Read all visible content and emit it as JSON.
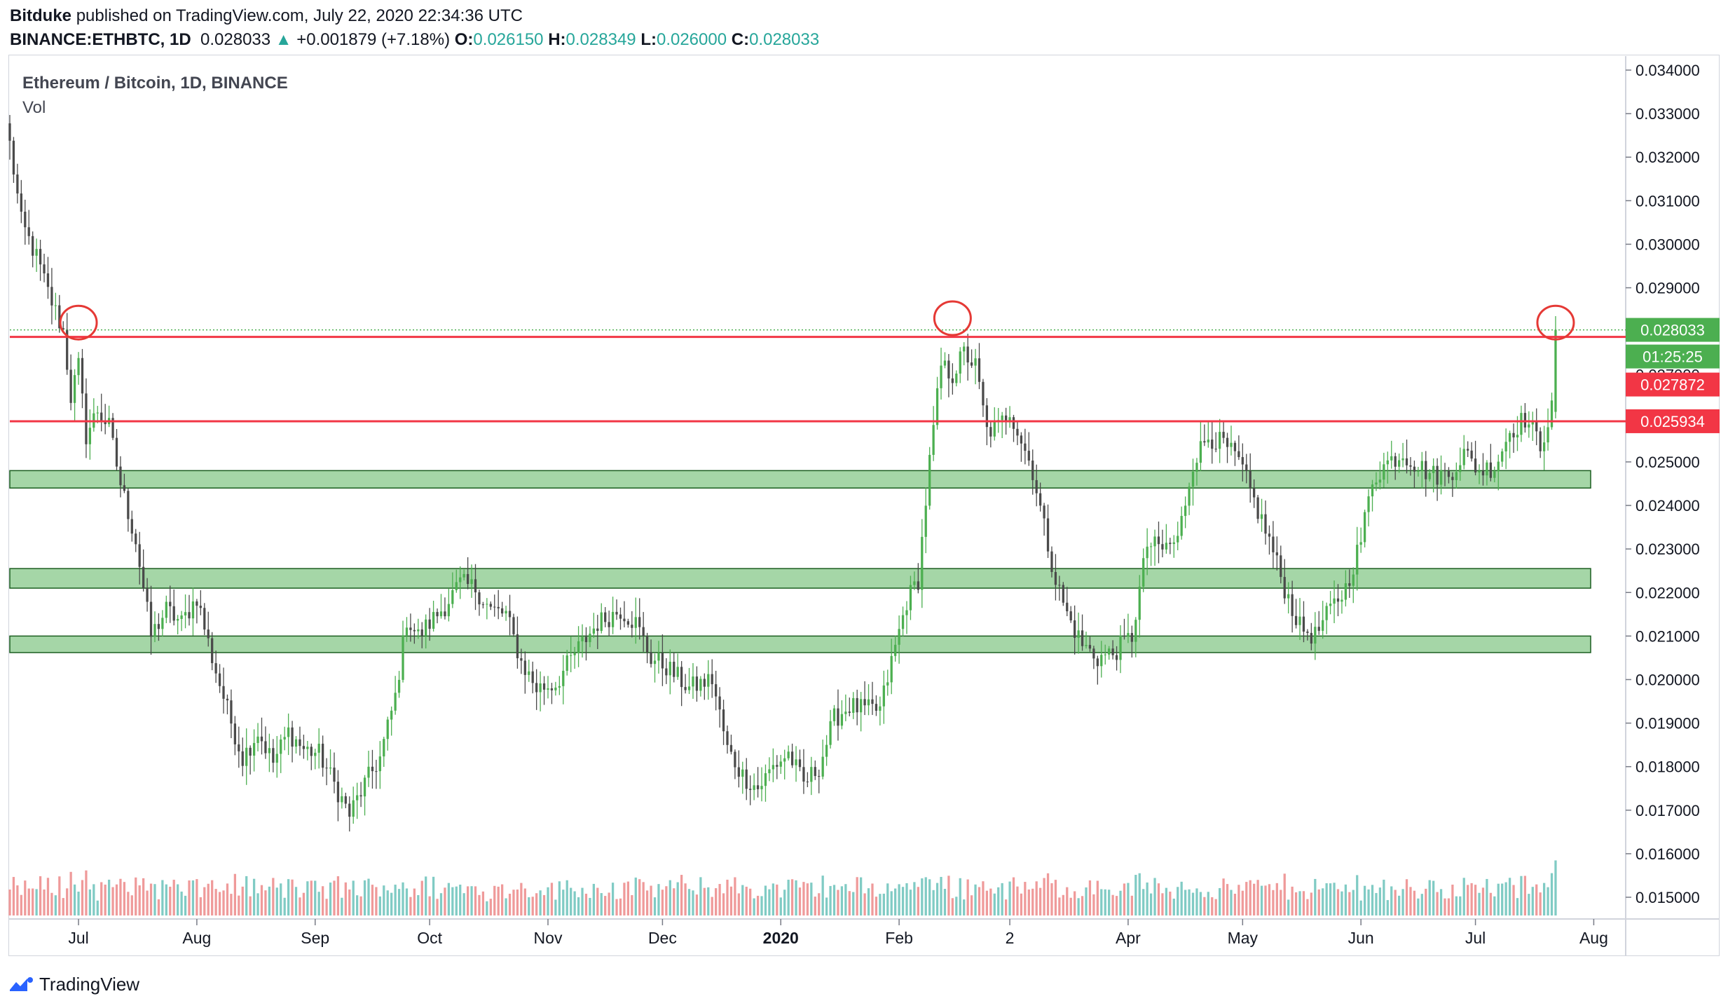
{
  "header": {
    "author": "Bitduke",
    "published": "published on TradingView.com, July 22, 2020 22:34:36 UTC",
    "symbol": "BINANCE:ETHBTC, 1D",
    "last": "0.028033",
    "change": "+0.001879 (+7.18%)",
    "o_label": "O:",
    "o_value": "0.026150",
    "h_label": "H:",
    "h_value": "0.028349",
    "l_label": "L:",
    "l_value": "0.026000",
    "c_label": "C:",
    "c_value": "0.028033"
  },
  "legend": {
    "title": "Ethereum / Bitcoin, 1D, BINANCE",
    "volume": "Vol"
  },
  "price_tags": [
    {
      "text": "0.028033",
      "value": 0.028033,
      "color": "#4caf50"
    },
    {
      "text": "01:25:25",
      "value": 0.027872,
      "color": "#4caf50",
      "row": "countdown"
    },
    {
      "text": "0.027872",
      "value": 0.027872,
      "color": "#f23645",
      "row": "below"
    },
    {
      "text": "0.025934",
      "value": 0.025934,
      "color": "#f23645"
    }
  ],
  "footer": {
    "brand": "TradingView",
    "icon": "tradingview-logo-icon"
  },
  "colors": {
    "up": "#4caf50",
    "down": "#4a4a4a",
    "vol_up": "#80cbc4",
    "vol_down": "#ef9a9a",
    "resistance": "#f23645",
    "zone_fill": "#a5d6a7",
    "zone_border": "#1b5e20",
    "annotation": "#e53935"
  },
  "chart_data": {
    "type": "candlestick",
    "title": "Ethereum / Bitcoin, 1D, BINANCE",
    "x_tick_labels": [
      "Jul",
      "Aug",
      "Sep",
      "Oct",
      "Nov",
      "Dec",
      "2020",
      "Feb",
      "2",
      "Apr",
      "May",
      "Jun",
      "Jul",
      "Aug"
    ],
    "x_tick_dates": [
      "2019-07-01",
      "2019-08-01",
      "2019-09-01",
      "2019-10-01",
      "2019-11-01",
      "2019-12-01",
      "2020-01-01",
      "2020-02-01",
      "2020-03-01",
      "2020-04-01",
      "2020-05-01",
      "2020-06-01",
      "2020-07-01",
      "2020-08-01"
    ],
    "x_range": [
      "2019-06-13",
      "2020-08-09"
    ],
    "y_tick_labels": [
      "0.034000",
      "0.033000",
      "0.032000",
      "0.031000",
      "0.030000",
      "0.029000",
      "0.028000",
      "0.027000",
      "0.026000",
      "0.025000",
      "0.024000",
      "0.023000",
      "0.022000",
      "0.021000",
      "0.020000",
      "0.019000",
      "0.018000",
      "0.017000",
      "0.016000",
      "0.015000"
    ],
    "ylim": [
      0.01465,
      0.0344
    ],
    "current_price_line": 0.028033,
    "resistance_lines": [
      0.027872,
      0.025934
    ],
    "support_zones": [
      [
        0.0244,
        0.0248
      ],
      [
        0.0221,
        0.02255
      ],
      [
        0.02062,
        0.021
      ]
    ],
    "circled_peaks": [
      {
        "date": "2019-07-01",
        "price": 0.0282
      },
      {
        "date": "2020-02-15",
        "price": 0.0283
      },
      {
        "date": "2020-07-22",
        "price": 0.0282
      }
    ],
    "series_keypoints": [
      [
        "2019-06-13",
        0.0323
      ],
      [
        "2019-06-16",
        0.0305
      ],
      [
        "2019-06-20",
        0.0297
      ],
      [
        "2019-06-23",
        0.0289
      ],
      [
        "2019-06-27",
        0.028
      ],
      [
        "2019-06-29",
        0.0265
      ],
      [
        "2019-07-01",
        0.0272
      ],
      [
        "2019-07-03",
        0.0256
      ],
      [
        "2019-07-06",
        0.0262
      ],
      [
        "2019-07-09",
        0.0258
      ],
      [
        "2019-07-12",
        0.0245
      ],
      [
        "2019-07-16",
        0.0232
      ],
      [
        "2019-07-20",
        0.021
      ],
      [
        "2019-07-24",
        0.0216
      ],
      [
        "2019-07-28",
        0.0213
      ],
      [
        "2019-08-01",
        0.0219
      ],
      [
        "2019-08-05",
        0.0205
      ],
      [
        "2019-08-09",
        0.0193
      ],
      [
        "2019-08-13",
        0.0182
      ],
      [
        "2019-08-17",
        0.0188
      ],
      [
        "2019-08-21",
        0.0181
      ],
      [
        "2019-08-25",
        0.0188
      ],
      [
        "2019-08-29",
        0.0184
      ],
      [
        "2019-09-02",
        0.0183
      ],
      [
        "2019-09-06",
        0.0176
      ],
      [
        "2019-09-10",
        0.0169
      ],
      [
        "2019-09-14",
        0.0176
      ],
      [
        "2019-09-18",
        0.0182
      ],
      [
        "2019-09-22",
        0.0196
      ],
      [
        "2019-09-25",
        0.0214
      ],
      [
        "2019-09-28",
        0.021
      ],
      [
        "2019-10-01",
        0.0213
      ],
      [
        "2019-10-05",
        0.0217
      ],
      [
        "2019-10-09",
        0.0222
      ],
      [
        "2019-10-13",
        0.0221
      ],
      [
        "2019-10-17",
        0.0216
      ],
      [
        "2019-10-21",
        0.0215
      ],
      [
        "2019-10-25",
        0.0204
      ],
      [
        "2019-10-29",
        0.0198
      ],
      [
        "2019-11-03",
        0.0199
      ],
      [
        "2019-11-08",
        0.0206
      ],
      [
        "2019-11-14",
        0.0213
      ],
      [
        "2019-11-20",
        0.0216
      ],
      [
        "2019-11-24",
        0.0213
      ],
      [
        "2019-11-28",
        0.0205
      ],
      [
        "2019-12-02",
        0.0203
      ],
      [
        "2019-12-08",
        0.0198
      ],
      [
        "2019-12-14",
        0.02
      ],
      [
        "2019-12-18",
        0.0184
      ],
      [
        "2019-12-22",
        0.0178
      ],
      [
        "2019-12-26",
        0.0175
      ],
      [
        "2019-12-30",
        0.018
      ],
      [
        "2020-01-03",
        0.0183
      ],
      [
        "2020-01-07",
        0.0176
      ],
      [
        "2020-01-11",
        0.018
      ],
      [
        "2020-01-15",
        0.0191
      ],
      [
        "2020-01-19",
        0.0194
      ],
      [
        "2020-01-23",
        0.0193
      ],
      [
        "2020-01-27",
        0.0193
      ],
      [
        "2020-01-30",
        0.0204
      ],
      [
        "2020-02-03",
        0.0218
      ],
      [
        "2020-02-06",
        0.0223
      ],
      [
        "2020-02-09",
        0.025
      ],
      [
        "2020-02-12",
        0.0272
      ],
      [
        "2020-02-15",
        0.027
      ],
      [
        "2020-02-18",
        0.0275
      ],
      [
        "2020-02-21",
        0.0272
      ],
      [
        "2020-02-24",
        0.0257
      ],
      [
        "2020-02-27",
        0.0258
      ],
      [
        "2020-03-01",
        0.0262
      ],
      [
        "2020-03-04",
        0.0255
      ],
      [
        "2020-03-07",
        0.0248
      ],
      [
        "2020-03-10",
        0.0235
      ],
      [
        "2020-03-13",
        0.0223
      ],
      [
        "2020-03-16",
        0.0215
      ],
      [
        "2020-03-20",
        0.0208
      ],
      [
        "2020-03-24",
        0.0205
      ],
      [
        "2020-03-28",
        0.0206
      ],
      [
        "2020-04-02",
        0.021
      ],
      [
        "2020-04-06",
        0.0231
      ],
      [
        "2020-04-10",
        0.023
      ],
      [
        "2020-04-14",
        0.0232
      ],
      [
        "2020-04-18",
        0.025
      ],
      [
        "2020-04-22",
        0.0256
      ],
      [
        "2020-04-26",
        0.0254
      ],
      [
        "2020-04-30",
        0.025
      ],
      [
        "2020-05-04",
        0.0241
      ],
      [
        "2020-05-08",
        0.0232
      ],
      [
        "2020-05-12",
        0.0221
      ],
      [
        "2020-05-16",
        0.0212
      ],
      [
        "2020-05-20",
        0.021
      ],
      [
        "2020-05-24",
        0.0216
      ],
      [
        "2020-05-28",
        0.0221
      ],
      [
        "2020-06-01",
        0.0232
      ],
      [
        "2020-06-04",
        0.0246
      ],
      [
        "2020-06-08",
        0.025
      ],
      [
        "2020-06-12",
        0.0252
      ],
      [
        "2020-06-16",
        0.0249
      ],
      [
        "2020-06-20",
        0.0247
      ],
      [
        "2020-06-24",
        0.0247
      ],
      [
        "2020-06-28",
        0.0252
      ],
      [
        "2020-07-02",
        0.0248
      ],
      [
        "2020-07-06",
        0.0249
      ],
      [
        "2020-07-10",
        0.0257
      ],
      [
        "2020-07-14",
        0.026
      ],
      [
        "2020-07-18",
        0.0254
      ],
      [
        "2020-07-21",
        0.0262
      ],
      [
        "2020-07-22",
        0.028
      ]
    ]
  }
}
